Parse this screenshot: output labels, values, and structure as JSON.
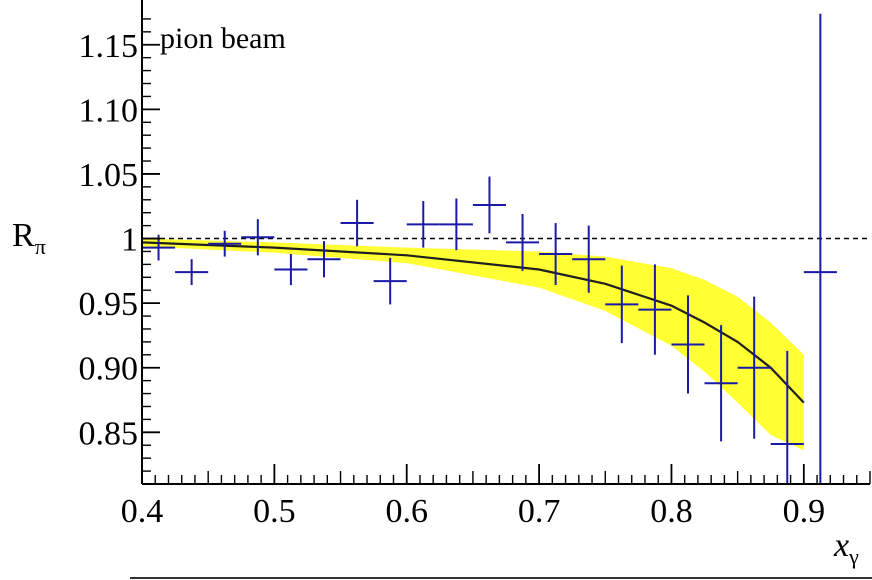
{
  "chart_data": {
    "type": "scatter",
    "annotation": "pion beam",
    "xlabel": {
      "main": "x",
      "sub": "γ"
    },
    "ylabel": {
      "main": "R",
      "sub": "π"
    },
    "xlim": [
      0.4,
      0.95
    ],
    "ylim": [
      0.81,
      1.18
    ],
    "x_ticks": [
      "0.4",
      "0.5",
      "0.6",
      "0.7",
      "0.8",
      "0.9"
    ],
    "y_ticks": [
      "0.85",
      "0.90",
      "0.95",
      "1",
      "1.05",
      "1.10",
      "1.15"
    ],
    "reference_line": 1.0,
    "colors": {
      "points": "#1a1aa6",
      "band": "#ffff33",
      "curve": "#1f1f1f",
      "reference": "#000000"
    },
    "series": [
      {
        "type": "errorbar",
        "x": [
          0.4125,
          0.4375,
          0.4625,
          0.4875,
          0.5125,
          0.5375,
          0.5625,
          0.5875,
          0.6125,
          0.6375,
          0.6625,
          0.6875,
          0.7125,
          0.7375,
          0.7625,
          0.7875,
          0.8125,
          0.8375,
          0.8625,
          0.8875,
          0.9125
        ],
        "y": [
          0.993,
          0.974,
          0.996,
          1.001,
          0.976,
          0.984,
          1.012,
          0.967,
          1.011,
          1.011,
          1.026,
          0.997,
          0.988,
          0.984,
          0.949,
          0.945,
          0.918,
          0.888,
          0.9,
          0.841,
          0.974
        ],
        "yerr": [
          0.01,
          0.01,
          0.01,
          0.014,
          0.012,
          0.014,
          0.018,
          0.018,
          0.018,
          0.02,
          0.022,
          0.022,
          0.024,
          0.026,
          0.03,
          0.035,
          0.038,
          0.045,
          0.055,
          0.072,
          0.2
        ],
        "xerr": 0.0125
      },
      {
        "type": "line",
        "x": [
          0.4,
          0.5,
          0.6,
          0.7,
          0.75,
          0.8,
          0.825,
          0.85,
          0.875,
          0.9
        ],
        "y": [
          0.997,
          0.993,
          0.987,
          0.976,
          0.965,
          0.948,
          0.935,
          0.92,
          0.9,
          0.873
        ]
      },
      {
        "type": "band",
        "x": [
          0.4,
          0.5,
          0.6,
          0.7,
          0.75,
          0.8,
          0.825,
          0.85,
          0.875,
          0.9
        ],
        "lower": [
          0.994,
          0.989,
          0.981,
          0.962,
          0.944,
          0.917,
          0.897,
          0.873,
          0.848,
          0.836
        ],
        "upper": [
          1.0,
          0.997,
          0.993,
          0.99,
          0.986,
          0.977,
          0.968,
          0.955,
          0.935,
          0.91
        ]
      }
    ]
  }
}
